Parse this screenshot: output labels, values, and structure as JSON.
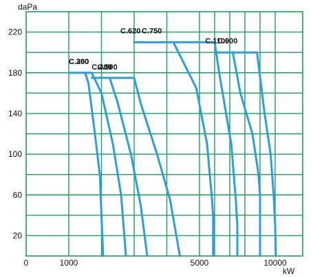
{
  "colors": {
    "background": "#ffffff",
    "grid": "#1aa05a",
    "curve": "#2a9fe0",
    "text": "#111111"
  },
  "chart_data": {
    "type": "line",
    "title": "",
    "ylabel": "daPa",
    "xlabel": "kW",
    "grid": true,
    "ylim": [
      0,
      240
    ],
    "xlim": [
      0,
      12000
    ],
    "y_tick_labels": [
      "20",
      "60",
      "100",
      "140",
      "180",
      "220"
    ],
    "x_tick_labels": [
      "0",
      "1000",
      "5000",
      "10000"
    ],
    "series": [
      {
        "name": "C.260",
        "x": [
          1000,
          1500,
          1600,
          1800,
          1950,
          2050
        ],
        "y": [
          180,
          180,
          170,
          120,
          80,
          0
        ]
      },
      {
        "name": "C.300",
        "x": [
          1500,
          1700,
          2000,
          2350,
          2600,
          2750
        ],
        "y": [
          180,
          180,
          160,
          110,
          60,
          0
        ]
      },
      {
        "name": "C.400",
        "x": [
          1700,
          2250,
          2500,
          2900,
          3200,
          3400
        ],
        "y": [
          175,
          175,
          150,
          100,
          50,
          0
        ]
      },
      {
        "name": "C.500",
        "x": [
          2250,
          3000,
          3200,
          3700,
          4100,
          4400
        ],
        "y": [
          175,
          175,
          150,
          100,
          55,
          0
        ]
      },
      {
        "name": "C.620",
        "x": [
          3000,
          4200,
          4900,
          5500,
          5800,
          5900,
          5900
        ],
        "y": [
          210,
          210,
          165,
          110,
          60,
          40,
          0
        ]
      },
      {
        "name": "C.750",
        "x": [
          4200,
          6000,
          6300,
          7100,
          7400,
          7500,
          7500
        ],
        "y": [
          210,
          210,
          180,
          110,
          55,
          30,
          0
        ]
      },
      {
        "name": "C.900",
        "x": [
          6000,
          7200,
          7700,
          8500,
          8900,
          9000,
          9000
        ],
        "y": [
          200,
          200,
          160,
          120,
          80,
          60,
          0
        ]
      },
      {
        "name": "C.1100",
        "x": [
          7200,
          8800,
          9300,
          9700,
          9900,
          10000,
          10050
        ],
        "y": [
          200,
          200,
          140,
          100,
          60,
          30,
          0
        ]
      }
    ]
  }
}
